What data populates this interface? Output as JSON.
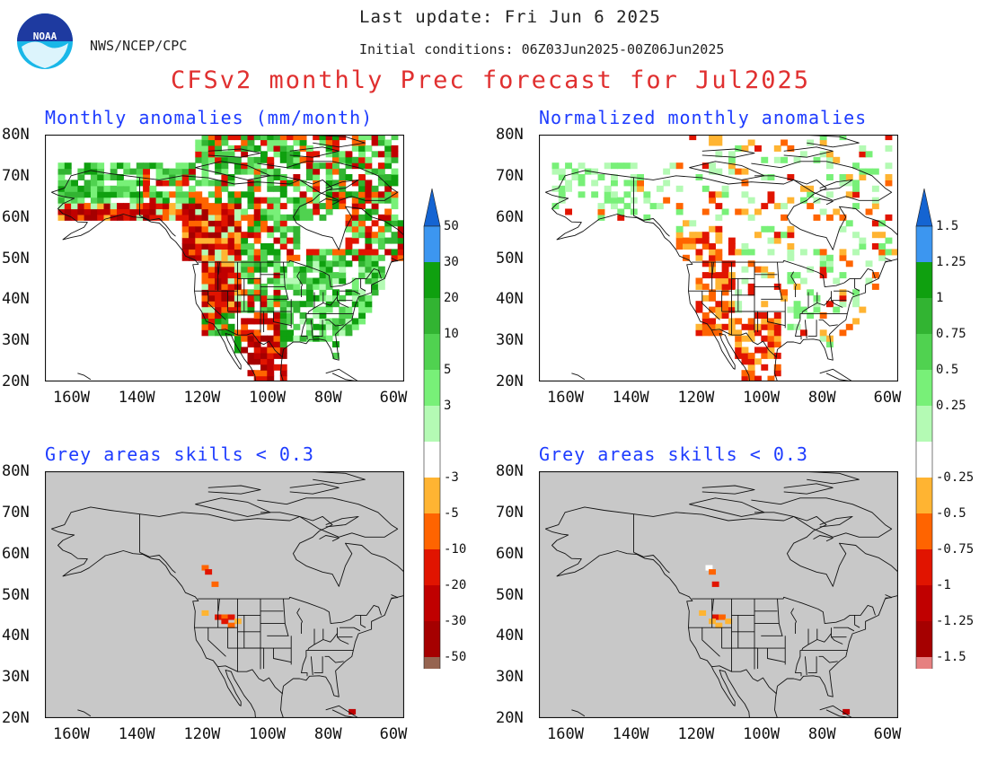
{
  "header": {
    "org": "NWS/NCEP/CPC",
    "last_update": "Last update: Fri Jun  6 2025",
    "initial_conditions": "Initial conditions: 06Z03Jun2025-00Z06Jun2025",
    "title": "CFSv2 monthly Prec forecast for Jul2025",
    "logo_text": "NOAA"
  },
  "panels": [
    {
      "title": "Monthly anomalies (mm/month)",
      "mode": "anom"
    },
    {
      "title": "Normalized monthly anomalies",
      "mode": "norm"
    },
    {
      "title": "Grey areas skills < 0.3",
      "mode": "skill"
    },
    {
      "title": "Grey areas skills < 0.3",
      "mode": "skill2"
    }
  ],
  "axes": {
    "lat_labels": [
      "80N",
      "70N",
      "60N",
      "50N",
      "40N",
      "30N",
      "20N"
    ],
    "lon_labels": [
      "160W",
      "140W",
      "120W",
      "100W",
      "80W",
      "60W"
    ]
  },
  "colorbars": [
    {
      "labels": [
        "50",
        "30",
        "20",
        "10",
        "5",
        "3",
        "-3",
        "-5",
        "-10",
        "-20",
        "-30",
        "-50"
      ],
      "colors": [
        "#1464d2",
        "#3c96f0",
        "#0fa00f",
        "#32b432",
        "#50d250",
        "#78f078",
        "#b4fab4",
        "#ffffff",
        "#ffb432",
        "#ff6400",
        "#e11400",
        "#c00000",
        "#a50000",
        "#966450",
        "#643c32"
      ]
    },
    {
      "labels": [
        "1.5",
        "1.25",
        "1",
        "0.75",
        "0.5",
        "0.25",
        "-0.25",
        "-0.5",
        "-0.75",
        "-1",
        "-1.25",
        "-1.5"
      ],
      "colors": [
        "#1464d2",
        "#3c96f0",
        "#0fa00f",
        "#32b432",
        "#50d250",
        "#78f078",
        "#b4fab4",
        "#ffffff",
        "#ffb432",
        "#ff6400",
        "#e11400",
        "#c00000",
        "#a50000",
        "#e68080",
        "#643c32"
      ]
    }
  ],
  "colors": {
    "title_red": "#e03030",
    "panel_title_blue": "#1e3cff",
    "skill_grey": "#c8c8c8"
  }
}
